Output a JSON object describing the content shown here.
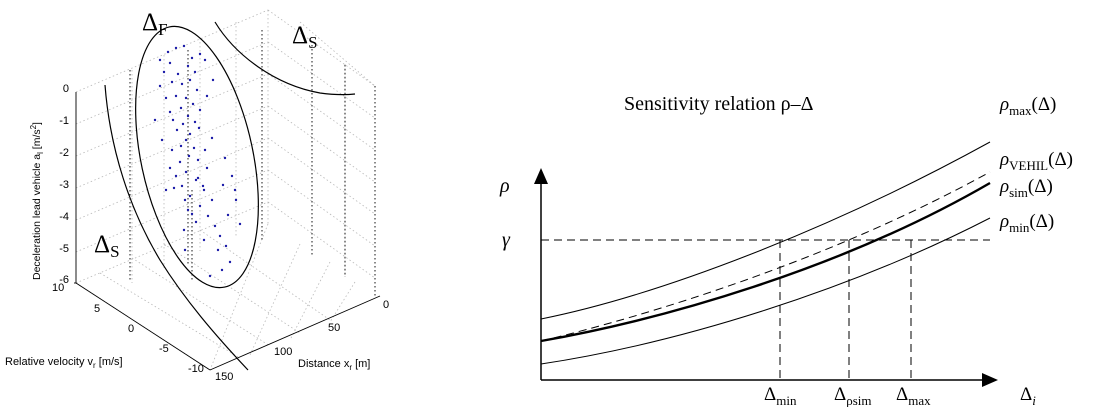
{
  "left_plot": {
    "region_labels": {
      "delta_f": {
        "main": "Δ",
        "sub": "F"
      },
      "delta_s_top": {
        "main": "Δ",
        "sub": "S"
      },
      "delta_s_left": {
        "main": "Δ",
        "sub": "S"
      }
    },
    "z_axis_label": "Deceleration lead vehicle a",
    "z_axis_label_sub": "l",
    "z_axis_label_unit": " [m/s",
    "z_axis_label_sup": "2",
    "z_axis_label_end": "]",
    "z_ticks": [
      "0",
      "-1",
      "-2",
      "-3",
      "-4",
      "-5",
      "-6"
    ],
    "vr_axis_label": "Relative velocity v",
    "vr_axis_label_sub": "r",
    "vr_axis_label_unit": " [m/s]",
    "vr_ticks": [
      "10",
      "5",
      "0",
      "-5",
      "-10"
    ],
    "x_axis_label": "Distance x",
    "x_axis_label_sub": "r",
    "x_axis_label_unit": " [m]",
    "x_ticks": [
      "0",
      "50",
      "100",
      "150"
    ],
    "point_color": "#1a1aa8"
  },
  "right_plot": {
    "title": "Sensitivity relation ρ–Δ",
    "y_axis_label": "ρ",
    "x_axis_label_main": "Δ",
    "x_axis_label_sub": "i",
    "gamma_label": "γ",
    "curves": [
      {
        "main": "ρ",
        "sub": "max",
        "arg": "(Δ)"
      },
      {
        "main": "ρ",
        "sub": "VEHIL",
        "arg": "(Δ)"
      },
      {
        "main": "ρ",
        "sub": "sim",
        "arg": "(Δ)"
      },
      {
        "main": "ρ",
        "sub": "min",
        "arg": "(Δ)"
      }
    ],
    "x_marks": [
      {
        "main": "Δ",
        "sub": "min"
      },
      {
        "main": "Δ",
        "sub": "ρsim"
      },
      {
        "main": "Δ",
        "sub": "max"
      }
    ]
  }
}
